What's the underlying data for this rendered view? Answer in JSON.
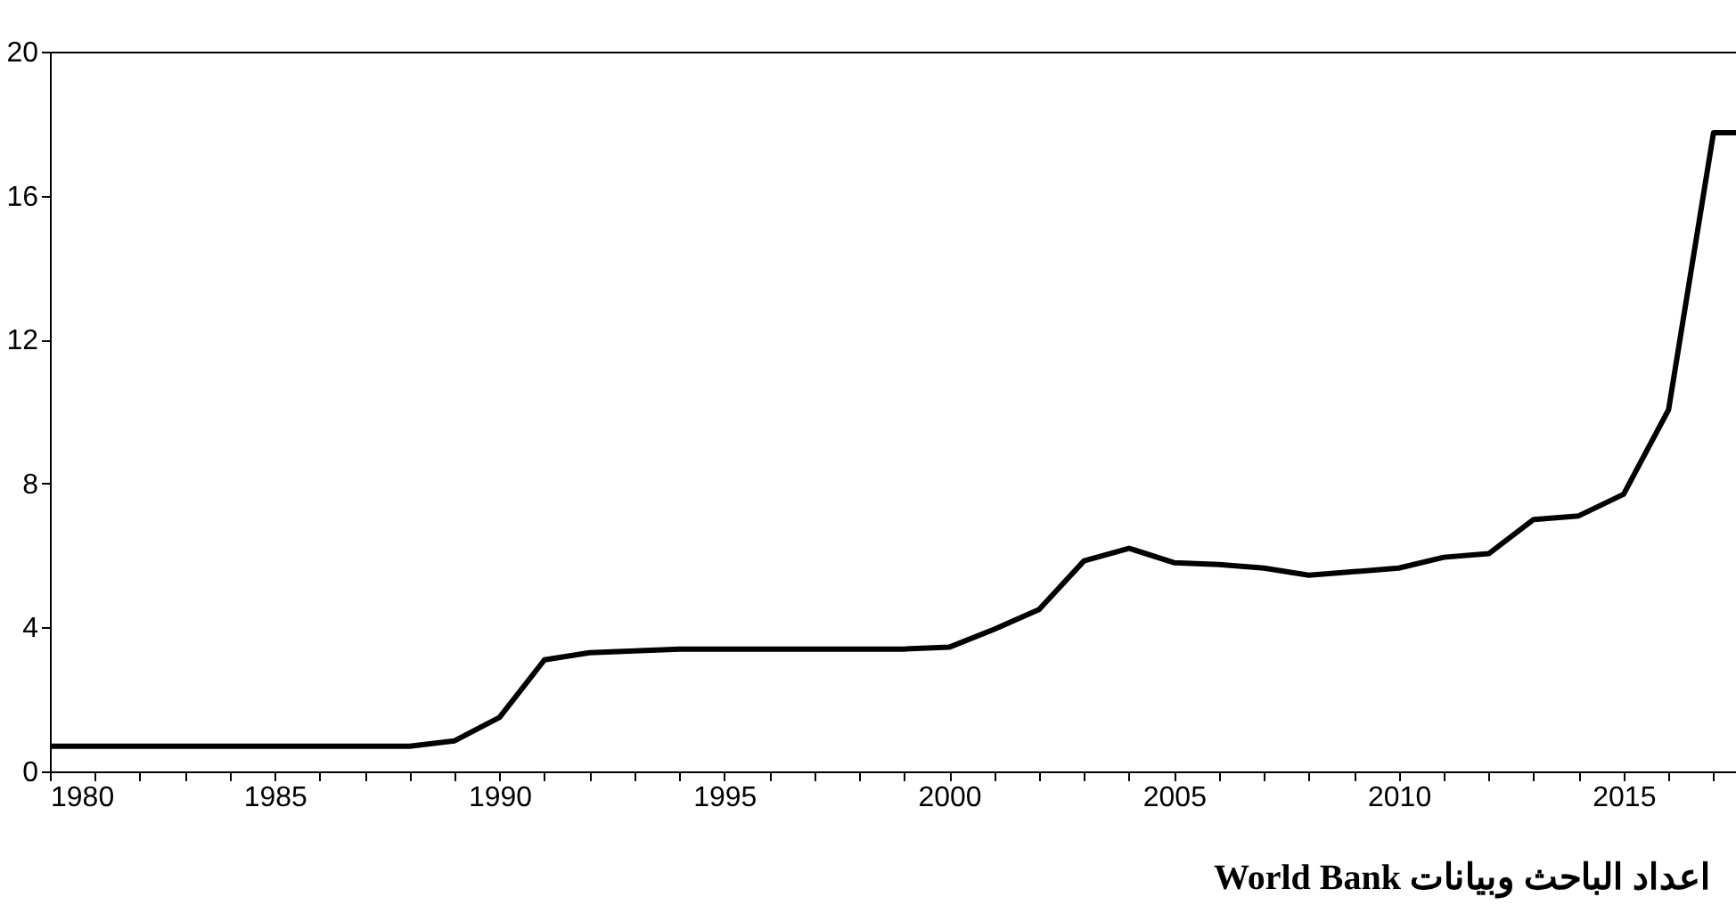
{
  "chart_data": {
    "type": "line",
    "annotations": [
      "اعداد الباحث وبيانات World Bank"
    ],
    "x": [
      1980,
      1981,
      1982,
      1983,
      1984,
      1985,
      1986,
      1987,
      1988,
      1989,
      1990,
      1991,
      1992,
      1993,
      1994,
      1995,
      1996,
      1997,
      1998,
      1999,
      2000,
      2001,
      2002,
      2003,
      2004,
      2005,
      2006,
      2007,
      2008,
      2009,
      2010,
      2011,
      2012,
      2013,
      2014,
      2015,
      2016,
      2017,
      2017.5
    ],
    "series": [
      {
        "color": "#000000",
        "values": [
          0.7,
          0.7,
          0.7,
          0.7,
          0.7,
          0.7,
          0.7,
          0.7,
          0.7,
          0.85,
          1.5,
          3.1,
          3.3,
          3.35,
          3.4,
          3.4,
          3.4,
          3.4,
          3.4,
          3.4,
          3.45,
          3.95,
          4.5,
          5.85,
          6.2,
          5.8,
          5.75,
          5.65,
          5.45,
          5.55,
          5.65,
          5.95,
          6.05,
          7.0,
          7.1,
          7.7,
          10.05,
          17.75,
          17.75
        ]
      }
    ],
    "xlim": [
      1980,
      2017.5
    ],
    "xticks": [
      1980,
      {
        "value": 1981,
        "label": null
      },
      {
        "value": 1982,
        "label": null
      },
      {
        "value": 1983,
        "label": null
      },
      {
        "value": 1984,
        "label": null
      },
      1985,
      {
        "value": 1986,
        "label": null
      },
      {
        "value": 1987,
        "label": null
      },
      {
        "value": 1988,
        "label": null
      },
      {
        "value": 1989,
        "label": null
      },
      1990,
      {
        "value": 1991,
        "label": null
      },
      {
        "value": 1992,
        "label": null
      },
      {
        "value": 1993,
        "label": null
      },
      {
        "value": 1994,
        "label": null
      },
      1995,
      {
        "value": 1996,
        "label": null
      },
      {
        "value": 1997,
        "label": null
      },
      {
        "value": 1998,
        "label": null
      },
      {
        "value": 1999,
        "label": null
      },
      2000,
      {
        "value": 2001,
        "label": null
      },
      {
        "value": 2002,
        "label": null
      },
      {
        "value": 2003,
        "label": null
      },
      {
        "value": 2004,
        "label": null
      },
      2005,
      {
        "value": 2006,
        "label": null
      },
      {
        "value": 2007,
        "label": null
      },
      {
        "value": 2008,
        "label": null
      },
      {
        "value": 2009,
        "label": null
      },
      2010,
      {
        "value": 2011,
        "label": null
      },
      {
        "value": 2012,
        "label": null
      },
      {
        "value": 2013,
        "label": null
      },
      {
        "value": 2014,
        "label": null
      },
      2015,
      {
        "value": 2016,
        "label": null
      },
      {
        "value": 2017,
        "label": null
      }
    ],
    "ylim": [
      0,
      20
    ],
    "yticks": [
      0,
      4,
      8,
      12,
      16,
      20
    ],
    "grid": false,
    "line_style": "solid"
  }
}
